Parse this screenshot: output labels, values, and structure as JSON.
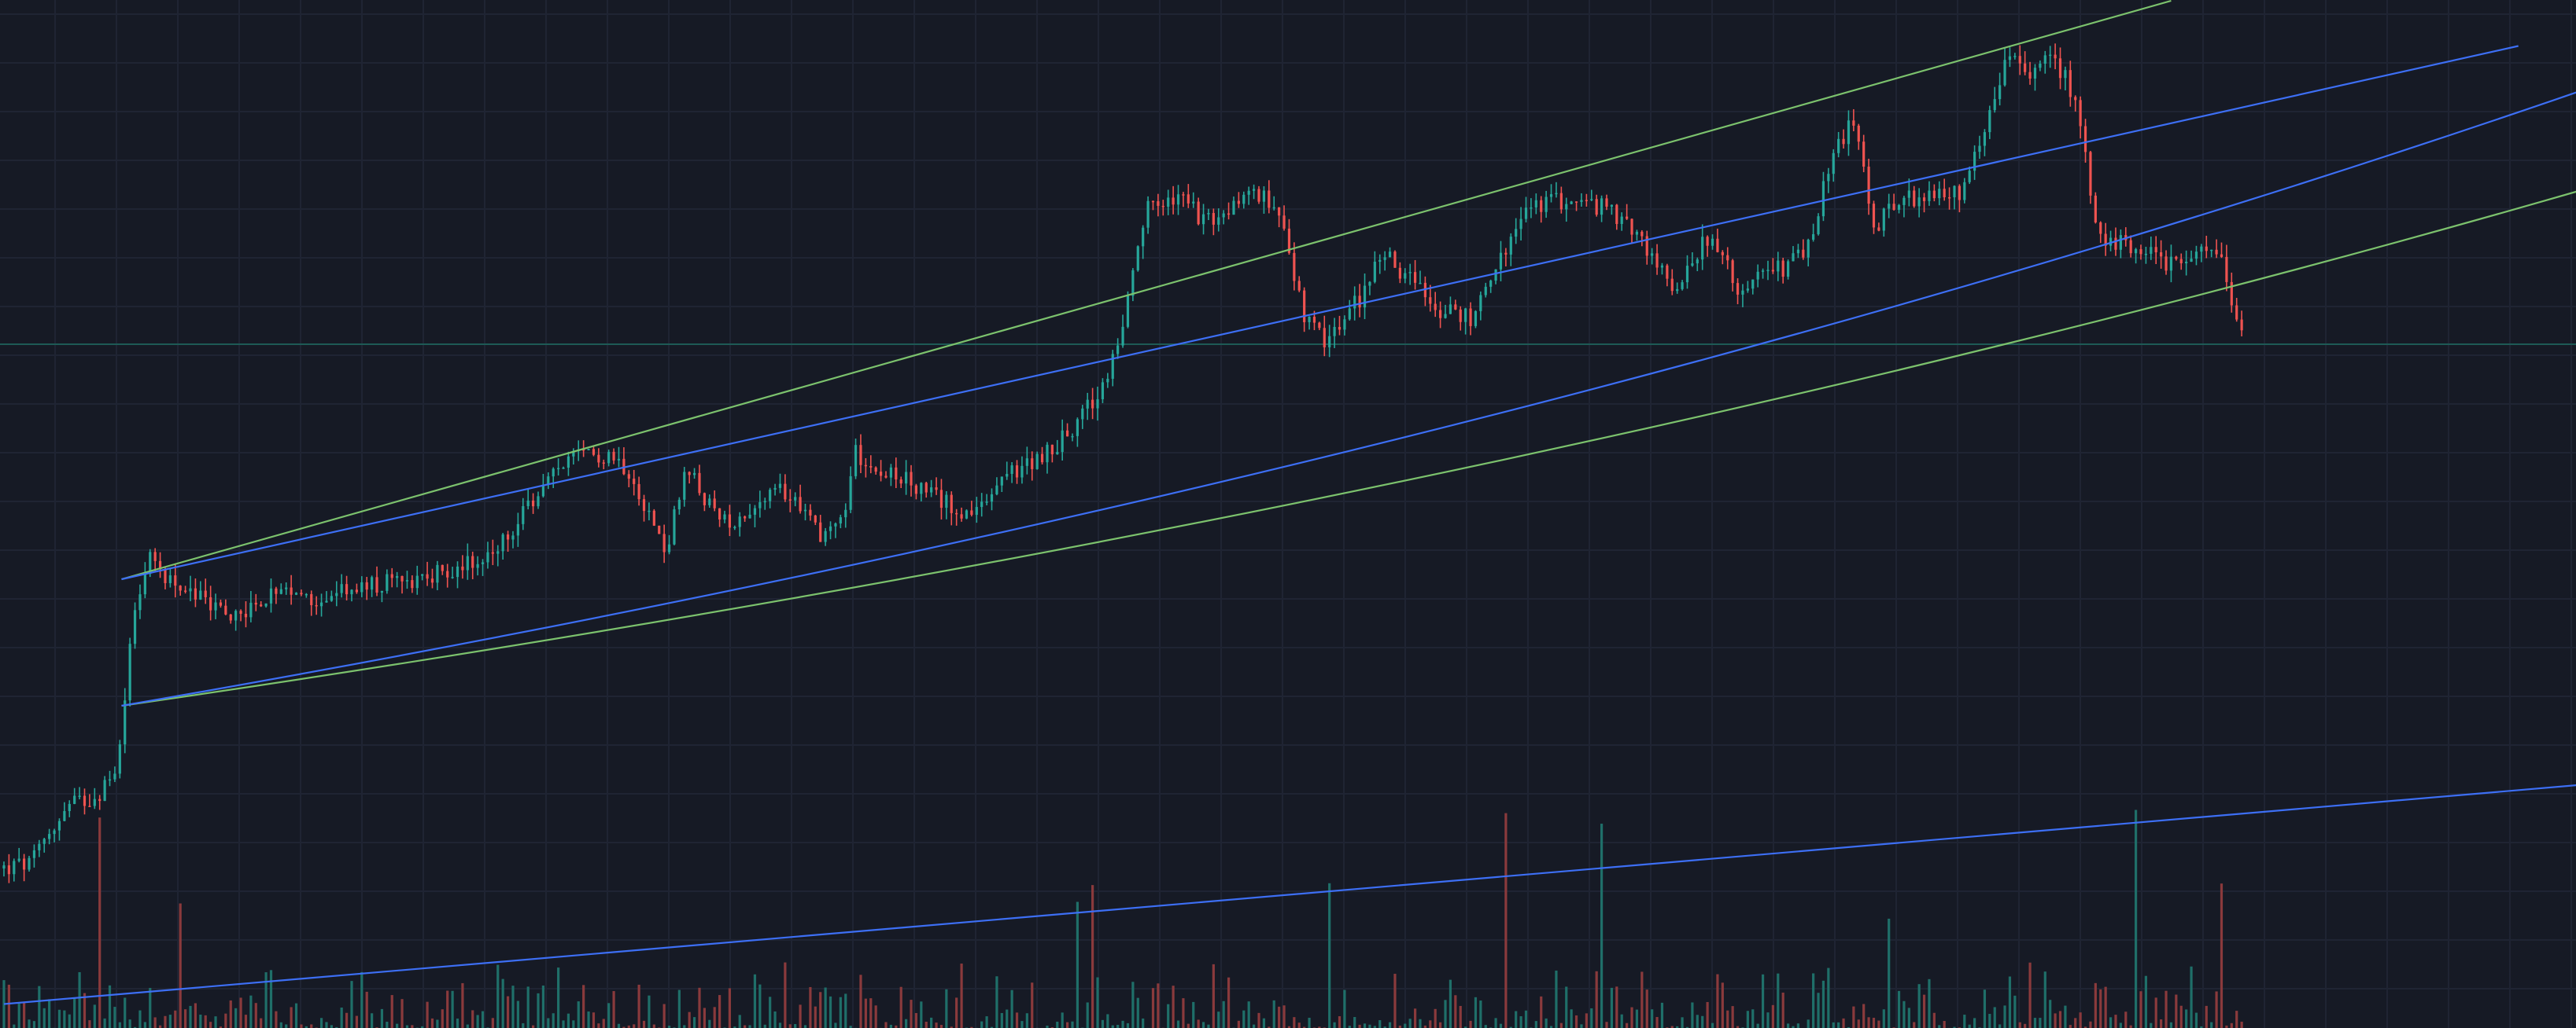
{
  "colors": {
    "background": "#161a25",
    "grid": "#1f2433",
    "up": "#26a69a",
    "down": "#ef5350",
    "volume_up": "#1f6f69",
    "volume_down": "#8a3a3c",
    "trend_green": "#7cc26d",
    "trend_blue": "#3d6ff5",
    "price_level_line": "#1e5a55"
  },
  "chart_data": {
    "type": "candlestick",
    "grid": true,
    "legend": "none",
    "x_range": [
      0,
      460
    ],
    "price_range": [
      0,
      100
    ],
    "volume_range": [
      0,
      100
    ],
    "price_level": 68,
    "price_path": [
      [
        0,
        10
      ],
      [
        5,
        10.5
      ],
      [
        8,
        14
      ],
      [
        12,
        17
      ],
      [
        16,
        18
      ],
      [
        19,
        19.5
      ],
      [
        21,
        24
      ],
      [
        23,
        39
      ],
      [
        26,
        44
      ],
      [
        32,
        41
      ],
      [
        40,
        38
      ],
      [
        48,
        40
      ],
      [
        56,
        40
      ],
      [
        64,
        41
      ],
      [
        72,
        42
      ],
      [
        80,
        43
      ],
      [
        88,
        45
      ],
      [
        95,
        51
      ],
      [
        100,
        55
      ],
      [
        108,
        56
      ],
      [
        112,
        54
      ],
      [
        118,
        45
      ],
      [
        122,
        54
      ],
      [
        128,
        48
      ],
      [
        134,
        50
      ],
      [
        140,
        52
      ],
      [
        146,
        47
      ],
      [
        150,
        49
      ],
      [
        152,
        56
      ],
      [
        158,
        54
      ],
      [
        166,
        51
      ],
      [
        174,
        49
      ],
      [
        178,
        53
      ],
      [
        184,
        55
      ],
      [
        190,
        58
      ],
      [
        196,
        63
      ],
      [
        200,
        70
      ],
      [
        204,
        83
      ],
      [
        210,
        84
      ],
      [
        216,
        81
      ],
      [
        222,
        85
      ],
      [
        228,
        83
      ],
      [
        232,
        71
      ],
      [
        236,
        68
      ],
      [
        242,
        73
      ],
      [
        246,
        78
      ],
      [
        250,
        76
      ],
      [
        256,
        72
      ],
      [
        262,
        71
      ],
      [
        266,
        76
      ],
      [
        272,
        83
      ],
      [
        278,
        84
      ],
      [
        286,
        83
      ],
      [
        292,
        80
      ],
      [
        298,
        74
      ],
      [
        304,
        80
      ],
      [
        310,
        74
      ],
      [
        316,
        76
      ],
      [
        322,
        78
      ],
      [
        326,
        88
      ],
      [
        330,
        93
      ],
      [
        334,
        81
      ],
      [
        338,
        84
      ],
      [
        344,
        84
      ],
      [
        350,
        85
      ],
      [
        354,
        92
      ],
      [
        358,
        101
      ],
      [
        362,
        97
      ],
      [
        366,
        100
      ],
      [
        370,
        95
      ],
      [
        374,
        80
      ],
      [
        380,
        79
      ],
      [
        386,
        77
      ],
      [
        392,
        78
      ],
      [
        396,
        78
      ],
      [
        398,
        72
      ],
      [
        400,
        69
      ]
    ],
    "trendlines": [
      {
        "color": "green",
        "curve": "straight",
        "from": [
          21,
          42
        ],
        "to": [
          387,
          106
        ]
      },
      {
        "color": "green",
        "curve": "up",
        "from": [
          21,
          28
        ],
        "to": [
          460,
          85
        ]
      },
      {
        "color": "blue",
        "curve": "straight",
        "from": [
          21,
          42
        ],
        "to": [
          449,
          101
        ]
      },
      {
        "color": "blue",
        "curve": "up",
        "from": [
          21,
          28
        ],
        "to": [
          460,
          96
        ]
      },
      {
        "color": "blue",
        "curve": "straight",
        "pane": "volume",
        "from": [
          0,
          5
        ],
        "to": [
          460,
          73
        ]
      }
    ]
  }
}
